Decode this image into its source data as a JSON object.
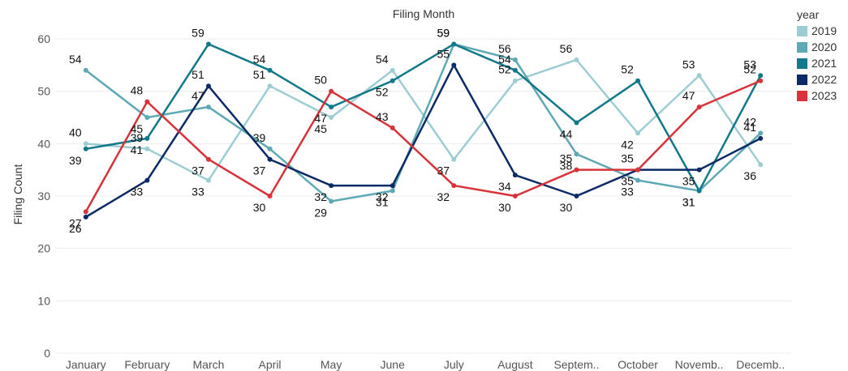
{
  "chart_data": {
    "type": "line",
    "title": "Filing Month",
    "ylabel": "Filing Count",
    "xlabel": "",
    "categories": [
      "January",
      "February",
      "March",
      "April",
      "May",
      "June",
      "July",
      "August",
      "Septem..",
      "October",
      "Novemb..",
      "Decemb.."
    ],
    "ylim": [
      0,
      60
    ],
    "yticks": [
      0,
      10,
      20,
      30,
      40,
      50,
      60
    ],
    "grid": true,
    "legend_position": "top-right",
    "legend_title": "year",
    "series": [
      {
        "name": "2019",
        "color": "#9dcdd2",
        "values": [
          40,
          39,
          33,
          51,
          45,
          54,
          37,
          52,
          56,
          42,
          53,
          36
        ]
      },
      {
        "name": "2020",
        "color": "#5ea9b4",
        "values": [
          54,
          45,
          47,
          39,
          29,
          31,
          59,
          56,
          38,
          33,
          31,
          42
        ]
      },
      {
        "name": "2021",
        "color": "#11798a",
        "values": [
          39,
          41,
          59,
          54,
          47,
          52,
          59,
          54,
          44,
          52,
          31,
          53
        ]
      },
      {
        "name": "2022",
        "color": "#0c2a66",
        "values": [
          26,
          33,
          51,
          37,
          32,
          32,
          55,
          34,
          30,
          35,
          35,
          41
        ]
      },
      {
        "name": "2023",
        "color": "#d8333a",
        "values": [
          27,
          48,
          37,
          30,
          50,
          43,
          32,
          30,
          35,
          35,
          47,
          52
        ]
      }
    ]
  }
}
